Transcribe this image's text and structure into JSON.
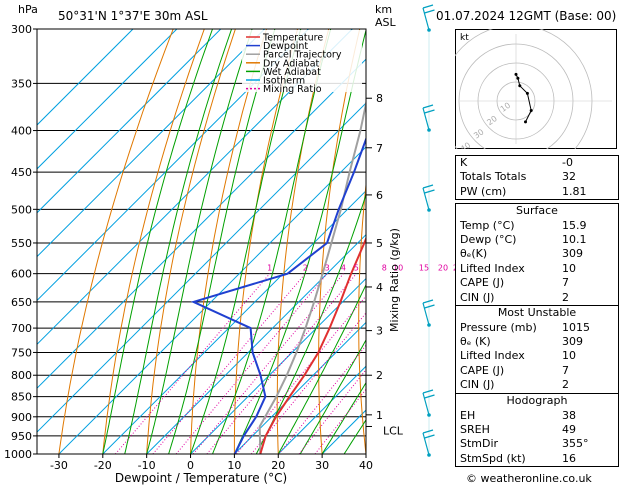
{
  "header": {
    "units_hpa": "hPa",
    "location": "50°31'N  1°37'E  30m  ASL",
    "units_km": "km",
    "units_asl": "ASL",
    "datetime": "01.07.2024  12GMT  (Base: 00)"
  },
  "legend": [
    {
      "label": "Temperature",
      "color": "#e03030",
      "dash": ""
    },
    {
      "label": "Dewpoint",
      "color": "#2040d0",
      "dash": ""
    },
    {
      "label": "Parcel Trajectory",
      "color": "#a0a0a0",
      "dash": ""
    },
    {
      "label": "Dry Adiabat",
      "color": "#e07800",
      "dash": ""
    },
    {
      "label": "Wet Adiabat",
      "color": "#00a000",
      "dash": ""
    },
    {
      "label": "Isotherm",
      "color": "#00a0e0",
      "dash": ""
    },
    {
      "label": "Mixing Ratio",
      "color": "#e000a0",
      "dash": "2,2"
    }
  ],
  "chart_data": {
    "type": "line",
    "xlabel": "Dewpoint / Temperature (°C)",
    "ylabel_right": "Mixing Ratio (g/kg)",
    "xlim": [
      -35,
      40
    ],
    "pressure_range": [
      1000,
      300
    ],
    "x_ticks": [
      -30,
      -20,
      -10,
      0,
      10,
      20,
      30,
      40
    ],
    "pressure_ticks": [
      300,
      350,
      400,
      450,
      500,
      550,
      600,
      650,
      700,
      750,
      800,
      850,
      900,
      950,
      1000
    ],
    "km_ticks": [
      {
        "km": "1",
        "p": 895
      },
      {
        "km": "2",
        "p": 800
      },
      {
        "km": "3",
        "p": 705
      },
      {
        "km": "4",
        "p": 623
      },
      {
        "km": "5",
        "p": 550
      },
      {
        "km": "6",
        "p": 480
      },
      {
        "km": "7",
        "p": 420
      },
      {
        "km": "8",
        "p": 365
      }
    ],
    "lcl_label": "LCL",
    "lcl_pressure": 925,
    "mixing_ratio_labels": [
      "1",
      "2",
      "3",
      "4",
      "5",
      "8",
      "10",
      "15",
      "20",
      "25"
    ],
    "temperature": [
      {
        "p": 1000,
        "t": 15.9
      },
      {
        "p": 950,
        "t": 13.0
      },
      {
        "p": 900,
        "t": 11.0
      },
      {
        "p": 850,
        "t": 9.5
      },
      {
        "p": 800,
        "t": 8.0
      },
      {
        "p": 750,
        "t": 6.0
      },
      {
        "p": 700,
        "t": 3.0
      },
      {
        "p": 650,
        "t": -0.5
      },
      {
        "p": 600,
        "t": -4.5
      },
      {
        "p": 550,
        "t": -8.5
      },
      {
        "p": 500,
        "t": -13.0
      },
      {
        "p": 450,
        "t": -18.5
      },
      {
        "p": 400,
        "t": -24.0
      },
      {
        "p": 350,
        "t": -32.0
      },
      {
        "p": 300,
        "t": -41.0
      }
    ],
    "dewpoint": [
      {
        "p": 1000,
        "t": 10.1
      },
      {
        "p": 950,
        "t": 8.0
      },
      {
        "p": 900,
        "t": 6.5
      },
      {
        "p": 850,
        "t": 4.0
      },
      {
        "p": 800,
        "t": -2.0
      },
      {
        "p": 750,
        "t": -9.0
      },
      {
        "p": 700,
        "t": -15.0
      },
      {
        "p": 650,
        "t": -34.0
      },
      {
        "p": 600,
        "t": -19.0
      },
      {
        "p": 550,
        "t": -17.0
      },
      {
        "p": 500,
        "t": -22.0
      },
      {
        "p": 450,
        "t": -27.0
      },
      {
        "p": 400,
        "t": -33.0
      },
      {
        "p": 350,
        "t": -41.0
      },
      {
        "p": 300,
        "t": -50.0
      }
    ],
    "parcel": [
      {
        "p": 1000,
        "t": 15.9
      },
      {
        "p": 925,
        "t": 9.5
      },
      {
        "p": 850,
        "t": 6.5
      },
      {
        "p": 800,
        "t": 4.0
      },
      {
        "p": 750,
        "t": 1.0
      },
      {
        "p": 700,
        "t": -2.5
      },
      {
        "p": 650,
        "t": -6.5
      },
      {
        "p": 600,
        "t": -11.0
      },
      {
        "p": 550,
        "t": -16.0
      },
      {
        "p": 500,
        "t": -21.5
      },
      {
        "p": 450,
        "t": -28.0
      },
      {
        "p": 400,
        "t": -35.0
      },
      {
        "p": 350,
        "t": -43.5
      },
      {
        "p": 300,
        "t": -53.0
      }
    ]
  },
  "hodograph": {
    "unit_label": "kt",
    "ring_labels": [
      "10",
      "20",
      "30",
      "40"
    ],
    "trace": [
      {
        "u": 0,
        "v": 14
      },
      {
        "u": 1,
        "v": 12
      },
      {
        "u": 2,
        "v": 8
      },
      {
        "u": 6,
        "v": 4
      },
      {
        "u": 8,
        "v": -5
      },
      {
        "u": 5,
        "v": -11
      }
    ]
  },
  "indices_table": {
    "rows": [
      {
        "label": "K",
        "value": "-0"
      },
      {
        "label": "Totals Totals",
        "value": "32"
      },
      {
        "label": "PW (cm)",
        "value": "1.81"
      }
    ]
  },
  "surface": {
    "title": "Surface",
    "rows": [
      {
        "label": "Temp (°C)",
        "value": "15.9"
      },
      {
        "label": "Dewp (°C)",
        "value": "10.1"
      },
      {
        "label": "θₑ(K)",
        "value": "309"
      },
      {
        "label": "Lifted Index",
        "value": "10"
      },
      {
        "label": "CAPE (J)",
        "value": "7"
      },
      {
        "label": "CIN (J)",
        "value": "2"
      }
    ]
  },
  "most_unstable": {
    "title": "Most Unstable",
    "rows": [
      {
        "label": "Pressure (mb)",
        "value": "1015"
      },
      {
        "label": "θₑ (K)",
        "value": "309"
      },
      {
        "label": "Lifted Index",
        "value": "10"
      },
      {
        "label": "CAPE (J)",
        "value": "7"
      },
      {
        "label": "CIN (J)",
        "value": "2"
      }
    ]
  },
  "hodograph_table": {
    "title": "Hodograph",
    "rows": [
      {
        "label": "EH",
        "value": "38"
      },
      {
        "label": "SREH",
        "value": "49"
      },
      {
        "label": "StmDir",
        "value": "355°"
      },
      {
        "label": "StmSpd (kt)",
        "value": "16"
      }
    ]
  },
  "footer": {
    "credit": "© weatheronline.co.uk"
  },
  "colors": {
    "temperature": "#e03030",
    "dewpoint": "#2040d0",
    "parcel": "#a0a0a0",
    "dry_adiabat": "#e07800",
    "wet_adiabat": "#00a000",
    "isotherm": "#00a0e0",
    "mixing_ratio": "#e000a0",
    "wind_barb": "#00a0c0"
  }
}
